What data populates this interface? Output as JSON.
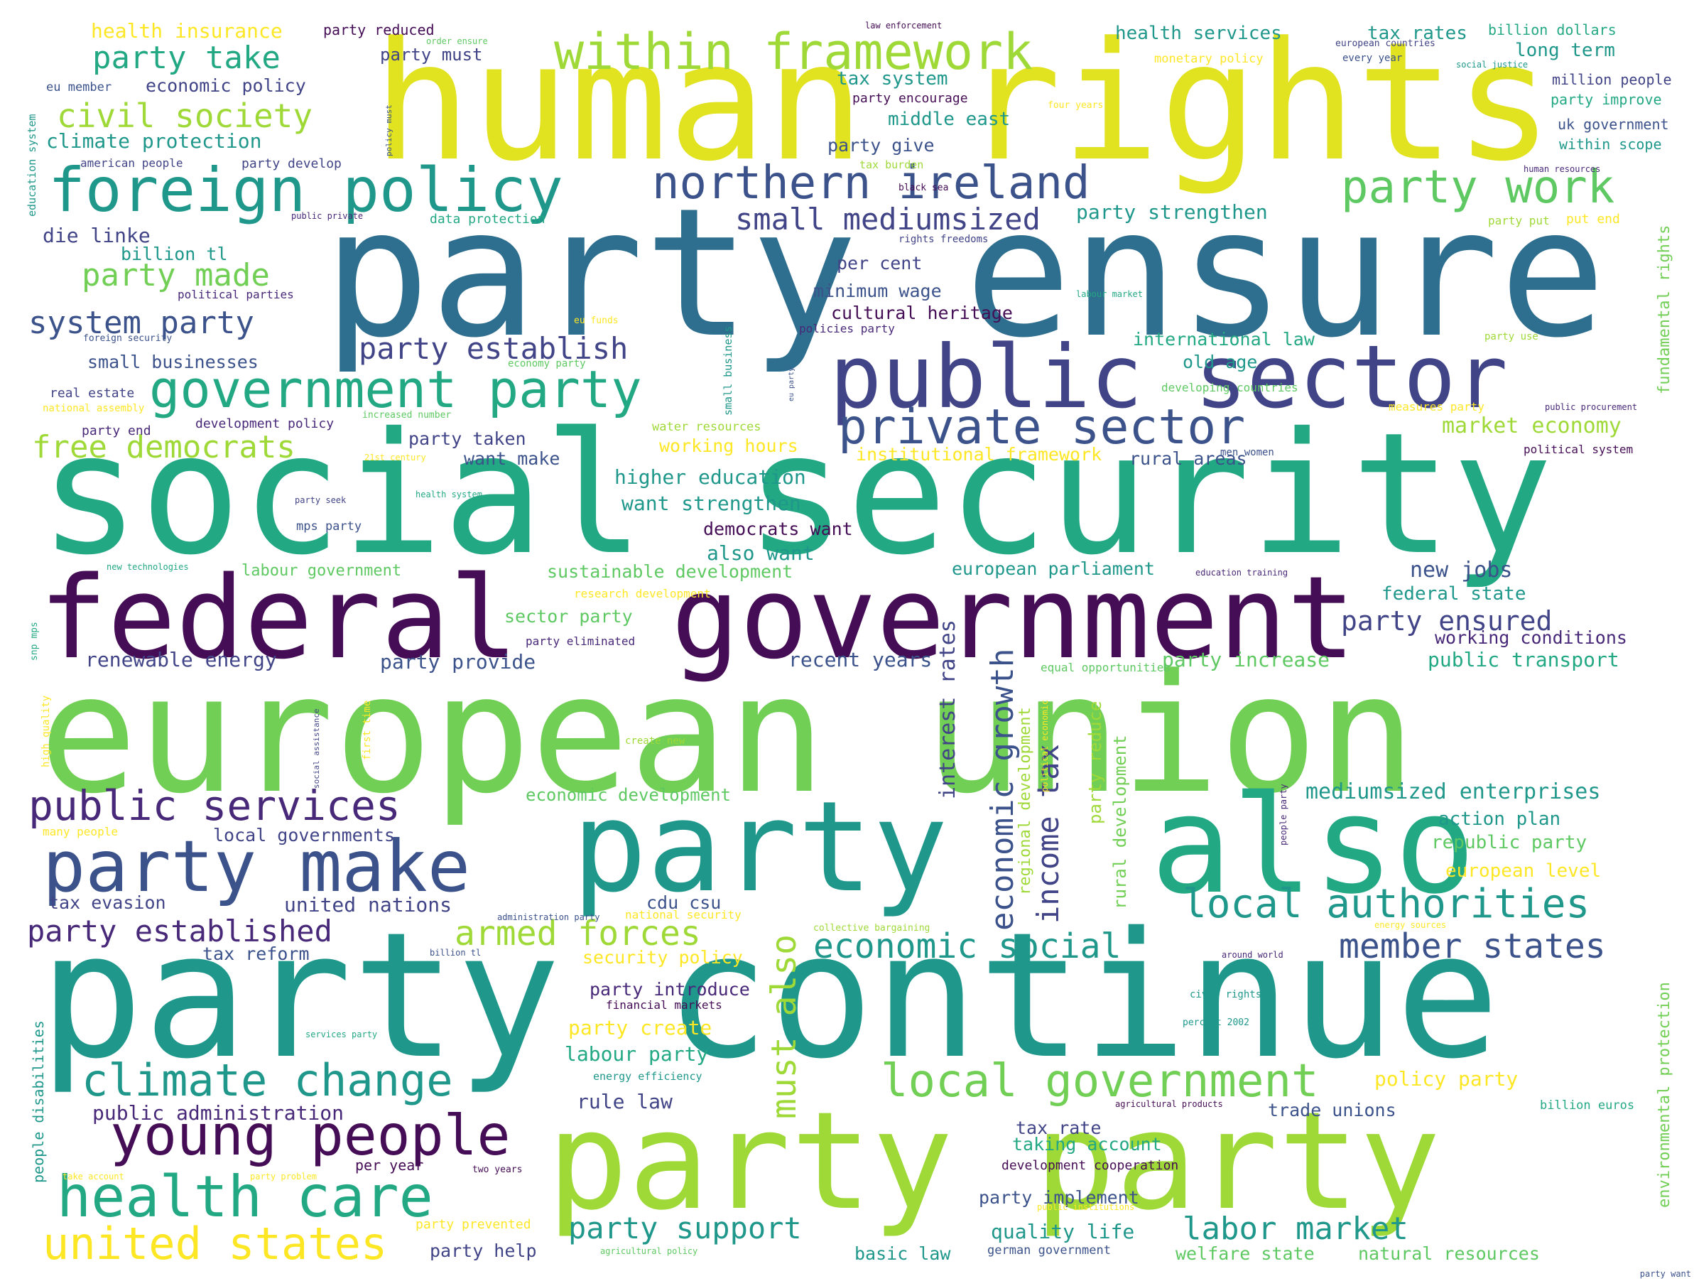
{
  "palette": {
    "w01": "#e1e220",
    "w02": "#2e6e8e",
    "w03": "#23a884",
    "w04": "#450d55",
    "w05": "#72cf55",
    "w06": "#1f988b",
    "w07": "#9fd938",
    "w08": "#414487",
    "w09": "#fde725",
    "w10": "#3b528b",
    "w11": "#482878",
    "w12": "#5ec962"
  },
  "words": [
    {
      "text": "human rights",
      "color": "w01"
    },
    {
      "text": "party ensure",
      "color": "w02"
    },
    {
      "text": "social security",
      "color": "w03"
    },
    {
      "text": "federal",
      "color": "w04"
    },
    {
      "text": "government",
      "color": "w04"
    },
    {
      "text": "european union",
      "color": "w05"
    },
    {
      "text": "party continue",
      "color": "w06"
    },
    {
      "text": "party",
      "color": "w06"
    },
    {
      "text": "also",
      "color": "w03"
    },
    {
      "text": "party party",
      "color": "w07"
    },
    {
      "text": "public sector",
      "color": "w08"
    },
    {
      "text": "within framework",
      "color": "w07"
    },
    {
      "text": "foreign policy",
      "color": "w06"
    },
    {
      "text": "northern ireland",
      "color": "w10"
    },
    {
      "text": "party work",
      "color": "w12"
    },
    {
      "text": "private sector",
      "color": "w10"
    },
    {
      "text": "government party",
      "color": "w03"
    },
    {
      "text": "party make",
      "color": "w10"
    },
    {
      "text": "public services",
      "color": "w11"
    },
    {
      "text": "young people",
      "color": "w04"
    },
    {
      "text": "health care",
      "color": "w03"
    },
    {
      "text": "united states",
      "color": "w09"
    },
    {
      "text": "climate change",
      "color": "w06"
    },
    {
      "text": "local government",
      "color": "w05"
    },
    {
      "text": "local authorities",
      "color": "w06"
    },
    {
      "text": "economic social",
      "color": "w06"
    },
    {
      "text": "member states",
      "color": "w10"
    },
    {
      "text": "labor market",
      "color": "w06"
    },
    {
      "text": "party support",
      "color": "w06"
    },
    {
      "text": "armed forces",
      "color": "w07"
    },
    {
      "text": "party established",
      "color": "w11"
    },
    {
      "text": "civil society",
      "color": "w07"
    },
    {
      "text": "party take",
      "color": "w03"
    },
    {
      "text": "small mediumsized",
      "color": "w08"
    },
    {
      "text": "party establish",
      "color": "w08"
    },
    {
      "text": "free democrats",
      "color": "w07"
    },
    {
      "text": "system party",
      "color": "w10"
    },
    {
      "text": "party made",
      "color": "w05"
    },
    {
      "text": "party ensured",
      "color": "w08"
    },
    {
      "text": "mediumsized enterprises",
      "color": "w06"
    },
    {
      "text": "economic growth",
      "color": "w10"
    },
    {
      "text": "income tax",
      "color": "w08"
    },
    {
      "text": "must also",
      "color": "w07"
    },
    {
      "text": "interest rates",
      "color": "w08"
    },
    {
      "text": "health insurance",
      "color": "w09"
    },
    {
      "text": "party reduced",
      "color": "w04"
    },
    {
      "text": "health services",
      "color": "w06"
    },
    {
      "text": "tax rates",
      "color": "w06"
    },
    {
      "text": "billion dollars",
      "color": "w03"
    },
    {
      "text": "long term",
      "color": "w06"
    },
    {
      "text": "party must",
      "color": "w08"
    },
    {
      "text": "economic policy",
      "color": "w08"
    },
    {
      "text": "tax system",
      "color": "w06"
    },
    {
      "text": "climate protection",
      "color": "w06"
    },
    {
      "text": "middle east",
      "color": "w06"
    },
    {
      "text": "party give",
      "color": "w10"
    },
    {
      "text": "party strengthen",
      "color": "w06"
    },
    {
      "text": "die linke",
      "color": "w08"
    },
    {
      "text": "billion tl",
      "color": "w06"
    },
    {
      "text": "per cent",
      "color": "w08"
    },
    {
      "text": "minimum wage",
      "color": "w10"
    },
    {
      "text": "cultural heritage",
      "color": "w04"
    },
    {
      "text": "small businesses",
      "color": "w10"
    },
    {
      "text": "international law",
      "color": "w03"
    },
    {
      "text": "old age",
      "color": "w06"
    },
    {
      "text": "market economy",
      "color": "w07"
    },
    {
      "text": "working hours",
      "color": "w09"
    },
    {
      "text": "institutional framework",
      "color": "w09"
    },
    {
      "text": "rural areas",
      "color": "w10"
    },
    {
      "text": "higher education",
      "color": "w06"
    },
    {
      "text": "want strengthen",
      "color": "w06"
    },
    {
      "text": "democrats want",
      "color": "w04"
    },
    {
      "text": "also want",
      "color": "w06"
    },
    {
      "text": "sustainable development",
      "color": "w12"
    },
    {
      "text": "european parliament",
      "color": "w06"
    },
    {
      "text": "new jobs",
      "color": "w10"
    },
    {
      "text": "federal state",
      "color": "w06"
    },
    {
      "text": "working conditions",
      "color": "w11"
    },
    {
      "text": "public transport",
      "color": "w03"
    },
    {
      "text": "party increase",
      "color": "w12"
    },
    {
      "text": "recent years",
      "color": "w10"
    },
    {
      "text": "renewable energy",
      "color": "w08"
    },
    {
      "text": "party provide",
      "color": "w10"
    },
    {
      "text": "economic development",
      "color": "w12"
    },
    {
      "text": "action plan",
      "color": "w06"
    },
    {
      "text": "republic party",
      "color": "w12"
    },
    {
      "text": "european level",
      "color": "w09"
    },
    {
      "text": "local governments",
      "color": "w08"
    },
    {
      "text": "united nations",
      "color": "w08"
    },
    {
      "text": "tax evasion",
      "color": "w08"
    },
    {
      "text": "tax reform",
      "color": "w10"
    },
    {
      "text": "cdu csu",
      "color": "w10"
    },
    {
      "text": "security policy",
      "color": "w09"
    },
    {
      "text": "party introduce",
      "color": "w11"
    },
    {
      "text": "party create",
      "color": "w09"
    },
    {
      "text": "labour party",
      "color": "w03"
    },
    {
      "text": "policy party",
      "color": "w09"
    },
    {
      "text": "rule law",
      "color": "w08"
    },
    {
      "text": "public administration",
      "color": "w11"
    },
    {
      "text": "trade unions",
      "color": "w10"
    },
    {
      "text": "tax rate",
      "color": "w08"
    },
    {
      "text": "taking account",
      "color": "w03"
    },
    {
      "text": "party implement",
      "color": "w10"
    },
    {
      "text": "quality life",
      "color": "w06"
    },
    {
      "text": "party help",
      "color": "w08"
    },
    {
      "text": "basic law",
      "color": "w06"
    },
    {
      "text": "welfare state",
      "color": "w12"
    },
    {
      "text": "natural resources",
      "color": "w12"
    },
    {
      "text": "want make",
      "color": "w10"
    },
    {
      "text": "party taken",
      "color": "w08"
    },
    {
      "text": "party want",
      "color": "w10"
    },
    {
      "text": "sector party",
      "color": "w12"
    },
    {
      "text": "party eliminated",
      "color": "w11"
    },
    {
      "text": "labour government",
      "color": "w12"
    },
    {
      "text": "development policy",
      "color": "w11"
    },
    {
      "text": "political parties",
      "color": "w11"
    },
    {
      "text": "party end",
      "color": "w11"
    },
    {
      "text": "water resources",
      "color": "w07"
    },
    {
      "text": "development cooperation",
      "color": "w04"
    },
    {
      "text": "regional development",
      "color": "w07"
    },
    {
      "text": "rural development",
      "color": "w05"
    },
    {
      "text": "party reduce",
      "color": "w07"
    },
    {
      "text": "fundamental rights",
      "color": "w05"
    },
    {
      "text": "environmental protection",
      "color": "w05"
    },
    {
      "text": "people disabilities",
      "color": "w06"
    },
    {
      "text": "education system",
      "color": "w06"
    },
    {
      "text": "law enforcement",
      "color": "w04"
    },
    {
      "text": "order ensure",
      "color": "w12"
    },
    {
      "text": "european countries",
      "color": "w08"
    },
    {
      "text": "every year",
      "color": "w10"
    },
    {
      "text": "social justice",
      "color": "w06"
    },
    {
      "text": "million people",
      "color": "w08"
    },
    {
      "text": "party improve",
      "color": "w03"
    },
    {
      "text": "uk government",
      "color": "w10"
    },
    {
      "text": "within scope",
      "color": "w06"
    },
    {
      "text": "human resources",
      "color": "w11"
    },
    {
      "text": "party put",
      "color": "w07"
    },
    {
      "text": "put end",
      "color": "w09"
    },
    {
      "text": "monetary policy",
      "color": "w09"
    },
    {
      "text": "party encourage",
      "color": "w04"
    },
    {
      "text": "four years",
      "color": "w09"
    },
    {
      "text": "tax burden",
      "color": "w07"
    },
    {
      "text": "black sea",
      "color": "w04"
    },
    {
      "text": "rights freedoms",
      "color": "w08"
    },
    {
      "text": "data protection",
      "color": "w03"
    },
    {
      "text": "public private",
      "color": "w11"
    },
    {
      "text": "american people",
      "color": "w08"
    },
    {
      "text": "party develop",
      "color": "w08"
    },
    {
      "text": "eu member",
      "color": "w10"
    },
    {
      "text": "labour market",
      "color": "w03"
    },
    {
      "text": "eu funds",
      "color": "w09"
    },
    {
      "text": "policy must",
      "color": "w10"
    },
    {
      "text": "policies party",
      "color": "w11"
    },
    {
      "text": "foreign security",
      "color": "w10"
    },
    {
      "text": "economy party",
      "color": "w12"
    },
    {
      "text": "real estate",
      "color": "w08"
    },
    {
      "text": "national assembly",
      "color": "w09"
    },
    {
      "text": "increased number",
      "color": "w12"
    },
    {
      "text": "developing countries",
      "color": "w12"
    },
    {
      "text": "measures party",
      "color": "w09"
    },
    {
      "text": "party use",
      "color": "w07"
    },
    {
      "text": "public procurement",
      "color": "w11"
    },
    {
      "text": "political system",
      "color": "w04"
    },
    {
      "text": "small business",
      "color": "w06"
    },
    {
      "text": "men women",
      "color": "w10"
    },
    {
      "text": "21st century",
      "color": "w09"
    },
    {
      "text": "health system",
      "color": "w03"
    },
    {
      "text": "party seek",
      "color": "w08"
    },
    {
      "text": "mps party",
      "color": "w10"
    },
    {
      "text": "education training",
      "color": "w11"
    },
    {
      "text": "new technologies",
      "color": "w03"
    },
    {
      "text": "research development",
      "color": "w09"
    },
    {
      "text": "equal opportunities",
      "color": "w12"
    },
    {
      "text": "create new",
      "color": "w07"
    },
    {
      "text": "many people",
      "color": "w09"
    },
    {
      "text": "snp mps",
      "color": "w03"
    },
    {
      "text": "high quality",
      "color": "w09"
    },
    {
      "text": "administration party",
      "color": "w10"
    },
    {
      "text": "national security",
      "color": "w09"
    },
    {
      "text": "collective bargaining",
      "color": "w07"
    },
    {
      "text": "social assistance",
      "color": "w08"
    },
    {
      "text": "first time",
      "color": "w09"
    },
    {
      "text": "people party",
      "color": "w11"
    },
    {
      "text": "political economic",
      "color": "w09"
    },
    {
      "text": "energy sources",
      "color": "w09"
    },
    {
      "text": "billion tl",
      "color": "w10"
    },
    {
      "text": "around world",
      "color": "w11"
    },
    {
      "text": "financial markets",
      "color": "w04"
    },
    {
      "text": "civil rights",
      "color": "w06"
    },
    {
      "text": "services party",
      "color": "w03"
    },
    {
      "text": "percent 2002",
      "color": "w06"
    },
    {
      "text": "energy efficiency",
      "color": "w06"
    },
    {
      "text": "agricultural products",
      "color": "w04"
    },
    {
      "text": "billion euros",
      "color": "w03"
    },
    {
      "text": "take account",
      "color": "w09"
    },
    {
      "text": "party problem",
      "color": "w09"
    },
    {
      "text": "per year",
      "color": "w04"
    },
    {
      "text": "two years",
      "color": "w04"
    },
    {
      "text": "public institutions",
      "color": "w09"
    },
    {
      "text": "german government",
      "color": "w10"
    },
    {
      "text": "agricultural policy",
      "color": "w12"
    },
    {
      "text": "party prevented",
      "color": "w09"
    },
    {
      "text": "eu party",
      "color": "w10"
    }
  ]
}
